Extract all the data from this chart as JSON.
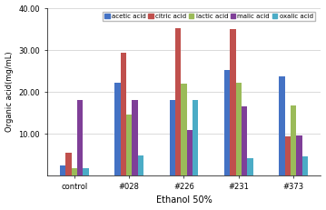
{
  "categories": [
    "control",
    "#028",
    "#226",
    "#231",
    "#373"
  ],
  "series": {
    "acetic acid": [
      2.5,
      22.2,
      18.0,
      25.2,
      23.8
    ],
    "citric acid": [
      5.5,
      29.3,
      35.3,
      35.1,
      9.5
    ],
    "lactic acid": [
      1.8,
      14.7,
      21.9,
      22.2,
      16.8
    ],
    "malic acid": [
      18.1,
      18.0,
      11.0,
      16.5,
      9.6
    ],
    "oxalic acid": [
      1.9,
      4.8,
      18.0,
      4.2,
      4.6
    ]
  },
  "colors": {
    "acetic acid": "#4472C4",
    "citric acid": "#C0504D",
    "lactic acid": "#9BBB59",
    "malic acid": "#7F3F98",
    "oxalic acid": "#4BACC6"
  },
  "ylabel": "Organic acid(mg/mL)",
  "xlabel": "Ethanol 50%",
  "ylim": [
    0,
    40.0
  ],
  "yticks": [
    10.0,
    20.0,
    30.0,
    40.0
  ],
  "title": "",
  "legend_order": [
    "acetic acid",
    "citric acid",
    "lactic acid",
    "malic acid",
    "oxalic acid"
  ],
  "background_color": "#ffffff",
  "grid_color": "#cccccc"
}
